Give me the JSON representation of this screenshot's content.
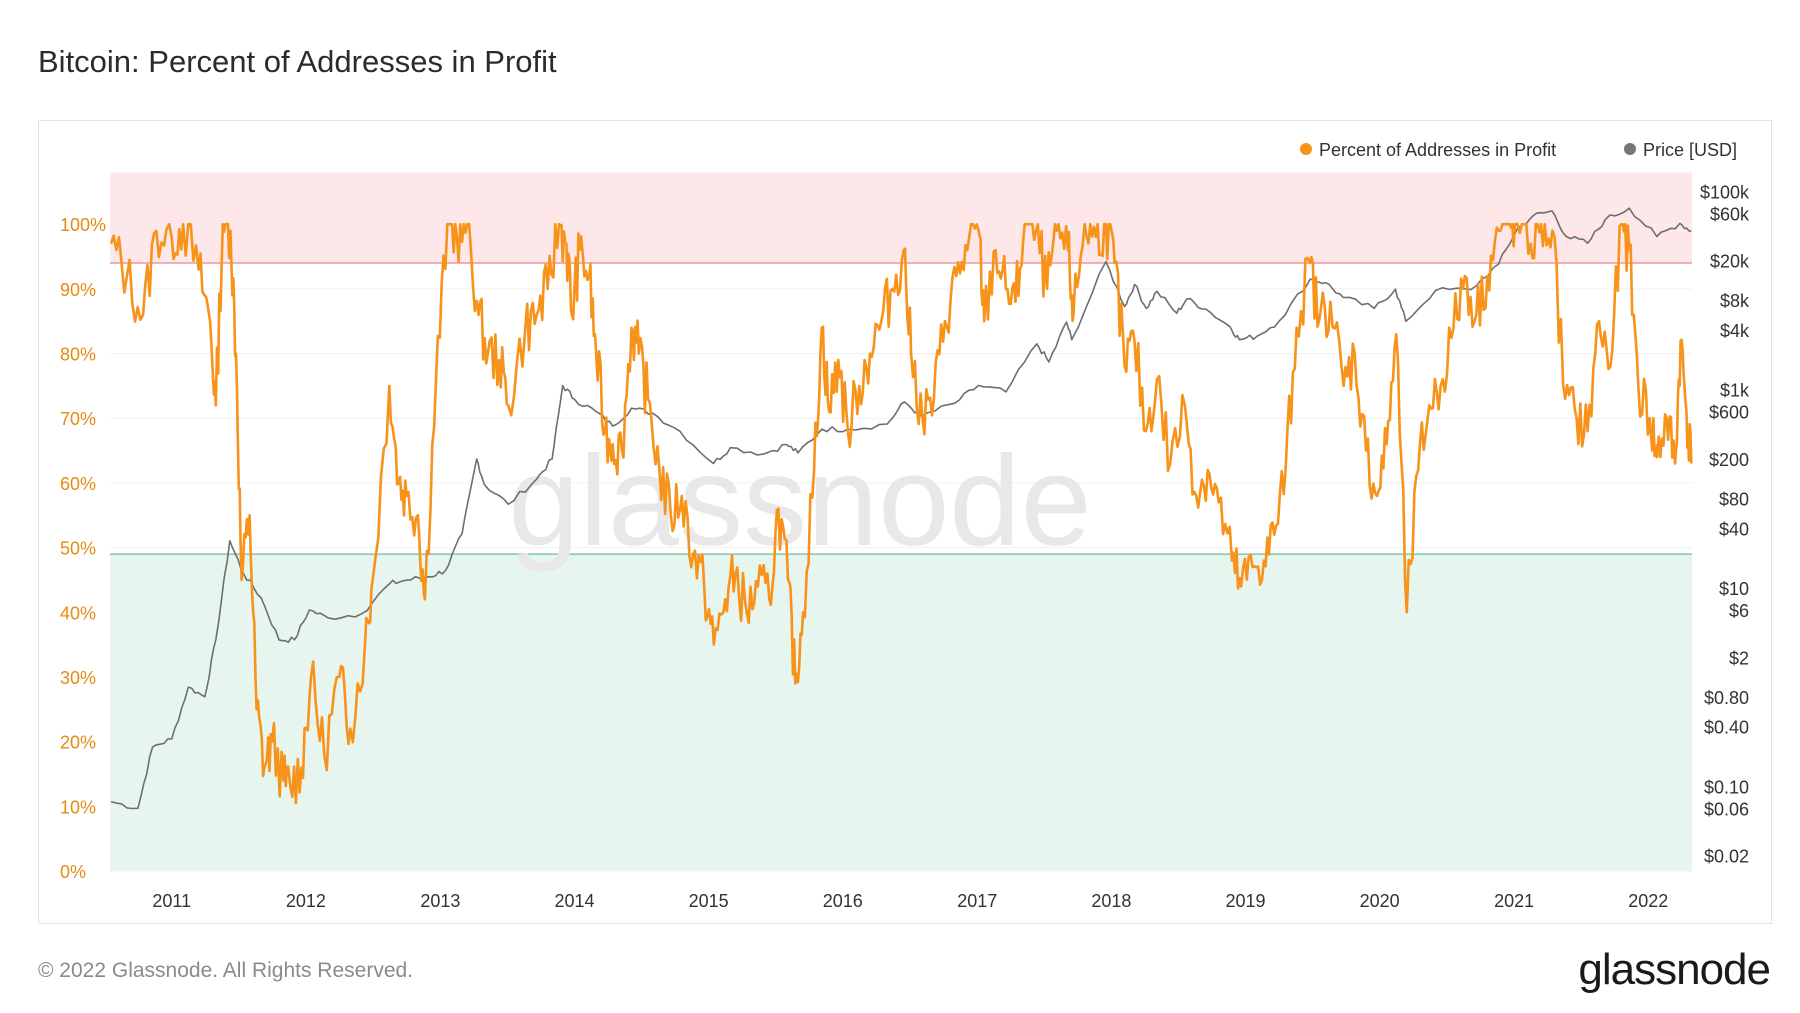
{
  "title": "Bitcoin: Percent of Addresses in Profit",
  "footer": "© 2022 Glassnode. All Rights Reserved.",
  "brand": "glassnode",
  "watermark": "glassnode",
  "colors": {
    "profit_line": "#f7931a",
    "price_line": "#6e6e6e",
    "upper_zone": "#fde7e8",
    "upper_line": "#e89aa0",
    "lower_zone": "#e6f6ee",
    "lower_line": "#7fc9a2",
    "left_axis_text": "#e58a12",
    "right_axis_text": "#333333"
  },
  "chart_data": {
    "type": "line",
    "grid": true,
    "legend_position": "top-right",
    "x_range": [
      "2010-07-17",
      "2022-04-30"
    ],
    "x_ticks": [
      "2011",
      "2012",
      "2013",
      "2014",
      "2015",
      "2016",
      "2017",
      "2018",
      "2019",
      "2020",
      "2021",
      "2022"
    ],
    "y_left": {
      "range": [
        0,
        100
      ],
      "ticks": [
        "0%",
        "10%",
        "20%",
        "30%",
        "40%",
        "50%",
        "60%",
        "70%",
        "80%",
        "90%",
        "100%"
      ]
    },
    "y_right": {
      "scale": "log",
      "ticks": [
        "$0.02",
        "$0.06",
        "$0.10",
        "$0.40",
        "$0.80",
        "$2",
        "$6",
        "$10",
        "$40",
        "$80",
        "$200",
        "$600",
        "$1k",
        "$4k",
        "$8k",
        "$20k",
        "$60k",
        "$100k"
      ]
    },
    "zones": [
      {
        "name": "upper",
        "from": 94,
        "to": 108
      },
      {
        "name": "lower",
        "from": 0,
        "to": 49
      }
    ],
    "series": [
      {
        "name": "Percent of Addresses in Profit",
        "axis": "left",
        "points": [
          [
            "2010-07-20",
            97
          ],
          [
            "2010-09-01",
            92
          ],
          [
            "2010-10-15",
            86
          ],
          [
            "2010-11-20",
            99
          ],
          [
            "2011-01-01",
            98
          ],
          [
            "2011-02-01",
            100
          ],
          [
            "2011-03-15",
            93
          ],
          [
            "2011-04-15",
            85
          ],
          [
            "2011-05-01",
            72
          ],
          [
            "2011-05-20",
            100
          ],
          [
            "2011-06-10",
            99
          ],
          [
            "2011-06-25",
            80
          ],
          [
            "2011-07-10",
            45
          ],
          [
            "2011-08-01",
            55
          ],
          [
            "2011-08-20",
            25
          ],
          [
            "2011-09-10",
            16
          ],
          [
            "2011-10-01",
            20
          ],
          [
            "2011-11-01",
            14
          ],
          [
            "2011-11-20",
            13
          ],
          [
            "2011-12-20",
            16
          ],
          [
            "2012-01-15",
            30
          ],
          [
            "2012-02-20",
            18
          ],
          [
            "2012-04-01",
            30
          ],
          [
            "2012-05-01",
            22
          ],
          [
            "2012-06-10",
            35
          ],
          [
            "2012-07-01",
            45
          ],
          [
            "2012-08-15",
            75
          ],
          [
            "2012-09-10",
            60
          ],
          [
            "2012-10-01",
            58
          ],
          [
            "2012-11-01",
            55
          ],
          [
            "2012-11-20",
            42
          ],
          [
            "2012-12-20",
            76
          ],
          [
            "2013-01-20",
            100
          ],
          [
            "2013-02-15",
            98
          ],
          [
            "2013-03-15",
            100
          ],
          [
            "2013-04-15",
            86
          ],
          [
            "2013-05-10",
            80
          ],
          [
            "2013-06-10",
            79
          ],
          [
            "2013-07-05",
            72
          ],
          [
            "2013-08-20",
            84
          ],
          [
            "2013-09-20",
            86
          ],
          [
            "2013-10-20",
            90
          ],
          [
            "2013-11-20",
            100
          ],
          [
            "2013-12-10",
            97
          ],
          [
            "2013-12-25",
            86
          ],
          [
            "2014-01-15",
            96
          ],
          [
            "2014-02-10",
            92
          ],
          [
            "2014-03-01",
            80
          ],
          [
            "2014-03-25",
            68
          ],
          [
            "2014-04-15",
            66
          ],
          [
            "2014-05-10",
            65
          ],
          [
            "2014-06-05",
            84
          ],
          [
            "2014-06-25",
            80
          ],
          [
            "2014-07-20",
            73
          ],
          [
            "2014-08-20",
            62
          ],
          [
            "2014-09-20",
            55
          ],
          [
            "2014-10-20",
            58
          ],
          [
            "2014-11-20",
            49
          ],
          [
            "2014-12-20",
            44
          ],
          [
            "2015-01-15",
            35
          ],
          [
            "2015-02-15",
            42
          ],
          [
            "2015-03-15",
            46
          ],
          [
            "2015-04-15",
            40
          ],
          [
            "2015-05-15",
            44
          ],
          [
            "2015-06-15",
            42
          ],
          [
            "2015-07-10",
            56
          ],
          [
            "2015-08-05",
            45
          ],
          [
            "2015-08-25",
            29
          ],
          [
            "2015-09-15",
            40
          ],
          [
            "2015-10-15",
            62
          ],
          [
            "2015-11-05",
            84
          ],
          [
            "2015-11-25",
            71
          ],
          [
            "2015-12-20",
            79
          ],
          [
            "2016-01-15",
            68
          ],
          [
            "2016-02-15",
            75
          ],
          [
            "2016-03-15",
            80
          ],
          [
            "2016-04-15",
            85
          ],
          [
            "2016-05-15",
            90
          ],
          [
            "2016-06-15",
            96
          ],
          [
            "2016-07-05",
            80
          ],
          [
            "2016-08-05",
            70
          ],
          [
            "2016-09-05",
            73
          ],
          [
            "2016-10-05",
            85
          ],
          [
            "2016-11-05",
            92
          ],
          [
            "2016-12-05",
            96
          ],
          [
            "2017-01-05",
            99
          ],
          [
            "2017-01-20",
            85
          ],
          [
            "2017-02-20",
            96
          ],
          [
            "2017-03-20",
            90
          ],
          [
            "2017-04-15",
            88
          ],
          [
            "2017-05-10",
            100
          ],
          [
            "2017-06-10",
            99
          ],
          [
            "2017-07-10",
            90
          ],
          [
            "2017-08-05",
            99
          ],
          [
            "2017-09-05",
            96
          ],
          [
            "2017-09-20",
            86
          ],
          [
            "2017-10-20",
            100
          ],
          [
            "2017-11-20",
            98
          ],
          [
            "2017-12-17",
            100
          ],
          [
            "2018-01-10",
            94
          ],
          [
            "2018-02-06",
            78
          ],
          [
            "2018-03-05",
            82
          ],
          [
            "2018-04-05",
            68
          ],
          [
            "2018-05-05",
            76
          ],
          [
            "2018-06-10",
            63
          ],
          [
            "2018-07-20",
            72
          ],
          [
            "2018-08-20",
            58
          ],
          [
            "2018-09-20",
            62
          ],
          [
            "2018-10-20",
            57
          ],
          [
            "2018-11-25",
            48
          ],
          [
            "2018-12-20",
            44
          ],
          [
            "2019-01-20",
            47
          ],
          [
            "2019-02-20",
            48
          ],
          [
            "2019-03-20",
            52
          ],
          [
            "2019-04-20",
            62
          ],
          [
            "2019-05-20",
            84
          ],
          [
            "2019-06-25",
            94
          ],
          [
            "2019-07-20",
            85
          ],
          [
            "2019-08-20",
            88
          ],
          [
            "2019-09-25",
            75
          ],
          [
            "2019-10-25",
            80
          ],
          [
            "2019-11-25",
            65
          ],
          [
            "2019-12-25",
            58
          ],
          [
            "2020-01-20",
            66
          ],
          [
            "2020-02-15",
            83
          ],
          [
            "2020-03-15",
            40
          ],
          [
            "2020-04-15",
            62
          ],
          [
            "2020-05-15",
            72
          ],
          [
            "2020-06-15",
            75
          ],
          [
            "2020-07-20",
            84
          ],
          [
            "2020-08-20",
            92
          ],
          [
            "2020-09-20",
            86
          ],
          [
            "2020-10-20",
            92
          ],
          [
            "2020-11-20",
            99
          ],
          [
            "2020-12-20",
            100
          ],
          [
            "2021-01-10",
            100
          ],
          [
            "2021-02-15",
            97
          ],
          [
            "2021-03-15",
            100
          ],
          [
            "2021-04-15",
            99
          ],
          [
            "2021-05-20",
            73
          ],
          [
            "2021-06-20",
            70
          ],
          [
            "2021-07-20",
            68
          ],
          [
            "2021-08-20",
            85
          ],
          [
            "2021-09-20",
            78
          ],
          [
            "2021-10-20",
            100
          ],
          [
            "2021-11-10",
            96
          ],
          [
            "2021-12-05",
            75
          ],
          [
            "2022-01-05",
            70
          ],
          [
            "2022-01-25",
            64
          ],
          [
            "2022-02-20",
            70
          ],
          [
            "2022-03-15",
            63
          ],
          [
            "2022-03-30",
            82
          ],
          [
            "2022-04-15",
            71
          ],
          [
            "2022-04-28",
            63
          ]
        ]
      },
      {
        "name": "Price [USD]",
        "axis": "right",
        "points": [
          [
            "2010-07-20",
            0.07
          ],
          [
            "2010-10-01",
            0.06
          ],
          [
            "2010-11-10",
            0.25
          ],
          [
            "2011-01-01",
            0.3
          ],
          [
            "2011-02-15",
            1
          ],
          [
            "2011-04-01",
            0.8
          ],
          [
            "2011-05-01",
            3
          ],
          [
            "2011-06-08",
            30
          ],
          [
            "2011-07-15",
            14
          ],
          [
            "2011-09-01",
            8
          ],
          [
            "2011-10-20",
            3
          ],
          [
            "2011-12-01",
            3
          ],
          [
            "2012-01-10",
            6
          ],
          [
            "2012-03-01",
            5
          ],
          [
            "2012-06-01",
            5.5
          ],
          [
            "2012-08-15",
            11
          ],
          [
            "2012-10-01",
            12
          ],
          [
            "2012-12-01",
            13
          ],
          [
            "2013-01-15",
            15
          ],
          [
            "2013-03-01",
            35
          ],
          [
            "2013-04-10",
            200
          ],
          [
            "2013-05-01",
            110
          ],
          [
            "2013-07-05",
            70
          ],
          [
            "2013-09-20",
            125
          ],
          [
            "2013-11-01",
            200
          ],
          [
            "2013-11-30",
            1100
          ],
          [
            "2014-01-01",
            800
          ],
          [
            "2014-03-01",
            600
          ],
          [
            "2014-04-15",
            430
          ],
          [
            "2014-06-05",
            650
          ],
          [
            "2014-08-01",
            580
          ],
          [
            "2014-10-15",
            380
          ],
          [
            "2015-01-14",
            180
          ],
          [
            "2015-03-01",
            260
          ],
          [
            "2015-06-01",
            225
          ],
          [
            "2015-08-01",
            280
          ],
          [
            "2015-09-01",
            230
          ],
          [
            "2015-11-05",
            400
          ],
          [
            "2016-01-15",
            400
          ],
          [
            "2016-05-01",
            450
          ],
          [
            "2016-06-17",
            750
          ],
          [
            "2016-08-02",
            540
          ],
          [
            "2016-11-01",
            730
          ],
          [
            "2017-01-04",
            1100
          ],
          [
            "2017-03-20",
            950
          ],
          [
            "2017-06-12",
            2900
          ],
          [
            "2017-07-15",
            1900
          ],
          [
            "2017-09-01",
            4800
          ],
          [
            "2017-09-15",
            3200
          ],
          [
            "2017-12-17",
            19500
          ],
          [
            "2018-02-06",
            6900
          ],
          [
            "2018-03-05",
            11500
          ],
          [
            "2018-04-06",
            6600
          ],
          [
            "2018-05-05",
            9800
          ],
          [
            "2018-06-28",
            5900
          ],
          [
            "2018-07-25",
            8200
          ],
          [
            "2018-09-15",
            6500
          ],
          [
            "2018-11-20",
            4300
          ],
          [
            "2018-12-15",
            3200
          ],
          [
            "2019-02-01",
            3450
          ],
          [
            "2019-04-02",
            4900
          ],
          [
            "2019-06-26",
            13000
          ],
          [
            "2019-08-06",
            12000
          ],
          [
            "2019-09-24",
            8500
          ],
          [
            "2019-12-17",
            6600
          ],
          [
            "2020-02-13",
            10300
          ],
          [
            "2020-03-12",
            4900
          ],
          [
            "2020-06-01",
            10000
          ],
          [
            "2020-09-05",
            10200
          ],
          [
            "2020-11-20",
            18500
          ],
          [
            "2021-01-08",
            41000
          ],
          [
            "2021-02-20",
            56000
          ],
          [
            "2021-04-14",
            63500
          ],
          [
            "2021-05-23",
            35000
          ],
          [
            "2021-07-20",
            30000
          ],
          [
            "2021-09-06",
            52000
          ],
          [
            "2021-11-10",
            67500
          ],
          [
            "2022-01-24",
            35000
          ],
          [
            "2022-03-28",
            47500
          ],
          [
            "2022-04-28",
            39500
          ]
        ]
      }
    ]
  }
}
